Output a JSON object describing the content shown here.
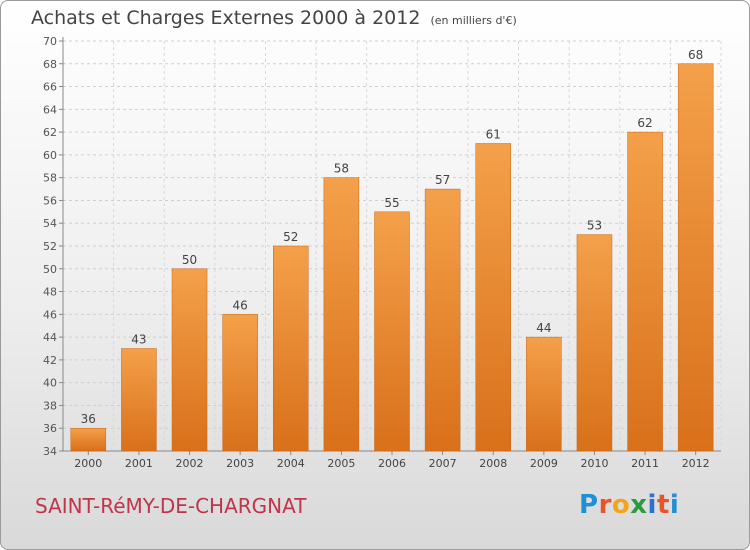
{
  "title": "Achats et Charges Externes 2000 à 2012",
  "unit": "(en milliers d'€)",
  "commune": "SAINT-RéMY-DE-CHARGNAT",
  "logo": {
    "text": "Proxiti",
    "letter_colors": [
      "#1f8fd6",
      "#e8542a",
      "#f2a51b",
      "#2c9a3f",
      "#2c6fd1",
      "#e8542a",
      "#1f8fd6"
    ]
  },
  "chart_data": {
    "type": "bar",
    "categories": [
      "2000",
      "2001",
      "2002",
      "2003",
      "2004",
      "2005",
      "2006",
      "2007",
      "2008",
      "2009",
      "2010",
      "2011",
      "2012"
    ],
    "values": [
      36,
      43,
      50,
      46,
      52,
      58,
      55,
      57,
      61,
      44,
      53,
      62,
      68
    ],
    "title": "Achats et Charges Externes 2000 à 2012",
    "ylim": [
      34,
      70
    ],
    "ytick_step": 2,
    "grid": true,
    "bar_color": "#f4a04a",
    "bar_color_dark": "#d9701a"
  }
}
